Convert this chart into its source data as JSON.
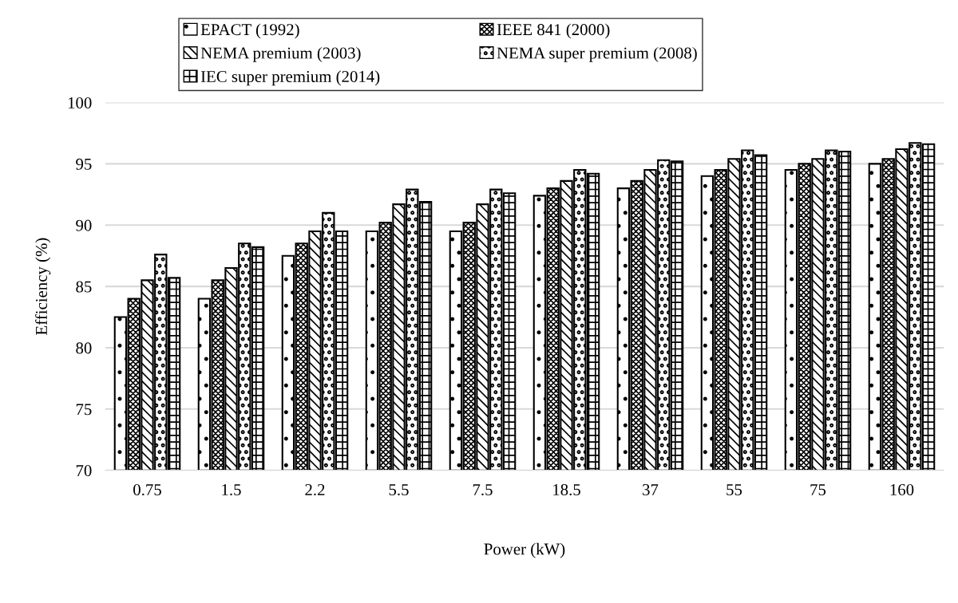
{
  "chart_data": {
    "type": "bar",
    "xlabel": "Power (kW)",
    "ylabel": "Efficiency (%)",
    "categories": [
      "0.75",
      "1.5",
      "2.2",
      "5.5",
      "7.5",
      "18.5",
      "37",
      "55",
      "75",
      "160"
    ],
    "series": [
      {
        "name": "EPACT (1992)",
        "color": "#000000",
        "values": [
          82.5,
          84.0,
          87.5,
          89.5,
          89.5,
          92.4,
          93.0,
          94.0,
          94.5,
          95.0
        ]
      },
      {
        "name": "IEEE 841 (2000)",
        "color": "#000000",
        "values": [
          84.0,
          85.5,
          88.5,
          90.2,
          90.2,
          93.0,
          93.6,
          94.5,
          95.0,
          95.4
        ]
      },
      {
        "name": "NEMA premium (2003)",
        "color": "#000000",
        "values": [
          85.5,
          86.5,
          89.5,
          91.7,
          91.7,
          93.6,
          94.5,
          95.4,
          95.4,
          96.2
        ]
      },
      {
        "name": "NEMA super premium (2008)",
        "color": "#000000",
        "values": [
          87.6,
          88.5,
          91.0,
          92.9,
          92.9,
          94.5,
          95.3,
          96.1,
          96.1,
          96.7
        ]
      },
      {
        "name": "IEC super premium (2014)",
        "color": "#000000",
        "values": [
          85.7,
          88.2,
          89.5,
          91.9,
          92.6,
          94.2,
          95.2,
          95.7,
          96.0,
          96.6
        ]
      }
    ],
    "ylim": [
      70,
      100
    ],
    "yticks": [
      70,
      75,
      80,
      85,
      90,
      95,
      100
    ],
    "grid": "y",
    "legend": "top"
  }
}
